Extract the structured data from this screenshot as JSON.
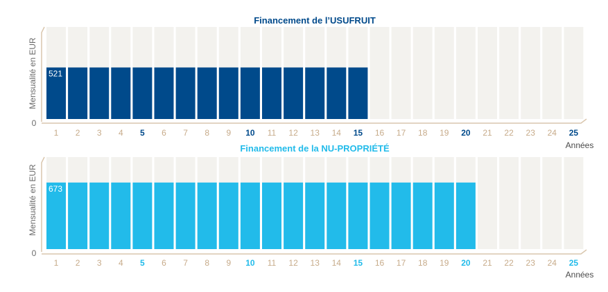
{
  "chart_data": [
    {
      "type": "bar",
      "title": "Financement de l’USUFRUIT",
      "ylabel": "Mensualité en EUR",
      "xlabel": "Années",
      "y_zero_label": "0",
      "categories": [
        "1",
        "2",
        "3",
        "4",
        "5",
        "6",
        "7",
        "8",
        "9",
        "10",
        "11",
        "12",
        "13",
        "14",
        "15",
        "16",
        "17",
        "18",
        "19",
        "20",
        "21",
        "22",
        "23",
        "24",
        "25"
      ],
      "values": [
        521,
        521,
        521,
        521,
        521,
        521,
        521,
        521,
        521,
        521,
        521,
        521,
        521,
        521,
        521,
        0,
        0,
        0,
        0,
        0,
        0,
        0,
        0,
        0,
        0
      ],
      "highlighted_ticks": [
        "5",
        "10",
        "15",
        "20",
        "25"
      ],
      "data_label": "521",
      "colors": {
        "bar": "#004a8b",
        "background_slot": "#f3f2ee",
        "title": "#004a8b",
        "tick": "#c7ab8a",
        "tick_highlight": "#004a8b",
        "axis": "#d9c6ad"
      }
    },
    {
      "type": "bar",
      "title": "Financement de la NU-PROPRIÉTÉ",
      "ylabel": "Mensualité en EUR",
      "xlabel": "Années",
      "y_zero_label": "0",
      "categories": [
        "1",
        "2",
        "3",
        "4",
        "5",
        "6",
        "7",
        "8",
        "9",
        "10",
        "11",
        "12",
        "13",
        "14",
        "15",
        "16",
        "17",
        "18",
        "19",
        "20",
        "21",
        "22",
        "23",
        "24",
        "25"
      ],
      "values": [
        673,
        673,
        673,
        673,
        673,
        673,
        673,
        673,
        673,
        673,
        673,
        673,
        673,
        673,
        673,
        673,
        673,
        673,
        673,
        673,
        0,
        0,
        0,
        0,
        0
      ],
      "highlighted_ticks": [
        "5",
        "10",
        "15",
        "20",
        "25"
      ],
      "data_label": "673",
      "colors": {
        "bar": "#22bbea",
        "background_slot": "#f3f2ee",
        "title": "#22bbea",
        "tick": "#c7ab8a",
        "tick_highlight": "#22bbea",
        "axis": "#d9c6ad"
      }
    }
  ]
}
